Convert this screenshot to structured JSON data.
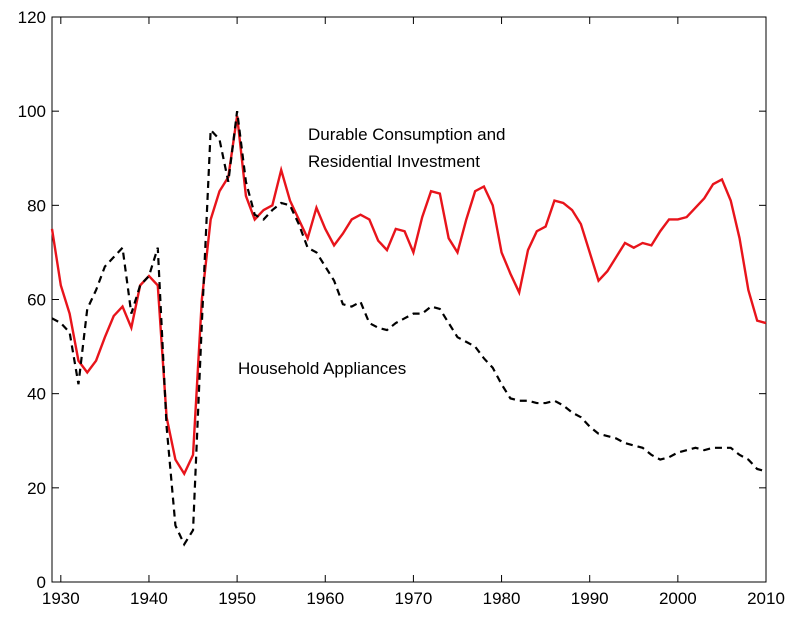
{
  "chart_data": {
    "type": "line",
    "annotations": [
      "Durable Consumption and",
      "Residential Investment",
      "Household Appliances"
    ],
    "x": [
      1929,
      1930,
      1931,
      1932,
      1933,
      1934,
      1935,
      1936,
      1937,
      1938,
      1939,
      1940,
      1941,
      1942,
      1943,
      1944,
      1945,
      1946,
      1947,
      1948,
      1949,
      1950,
      1951,
      1952,
      1953,
      1954,
      1955,
      1956,
      1957,
      1958,
      1959,
      1960,
      1961,
      1962,
      1963,
      1964,
      1965,
      1966,
      1967,
      1968,
      1969,
      1970,
      1971,
      1972,
      1973,
      1974,
      1975,
      1976,
      1977,
      1978,
      1979,
      1980,
      1981,
      1982,
      1983,
      1984,
      1985,
      1986,
      1987,
      1988,
      1989,
      1990,
      1991,
      1992,
      1993,
      1994,
      1995,
      1996,
      1997,
      1998,
      1999,
      2000,
      2001,
      2002,
      2003,
      2004,
      2005,
      2006,
      2007,
      2008,
      2009,
      2010
    ],
    "series": [
      {
        "color": "#e8141b",
        "dash": false,
        "values": [
          75,
          63,
          57,
          47,
          44.5,
          47,
          52,
          56.5,
          58.5,
          54,
          63,
          65,
          63,
          35,
          26,
          23,
          27,
          60,
          77,
          83,
          86,
          99,
          82,
          77,
          79,
          80,
          87.5,
          81,
          77,
          73,
          79.5,
          75,
          71.5,
          74,
          77,
          78,
          77,
          72.5,
          70.5,
          75,
          74.5,
          70,
          77.5,
          83,
          82.5,
          73,
          70,
          77,
          83,
          84,
          80,
          70,
          65.5,
          61.5,
          70.5,
          74.5,
          75.5,
          81,
          80.5,
          79,
          76,
          70,
          64,
          66,
          69,
          72,
          71,
          72,
          71.5,
          74.5,
          77,
          77,
          77.5,
          79.5,
          81.5,
          84.5,
          85.5,
          81,
          73,
          62,
          55.5,
          55
        ]
      },
      {
        "color": "#000000",
        "dash": true,
        "values": [
          56,
          55,
          53,
          42,
          58,
          62,
          67,
          69,
          71,
          57,
          63,
          65,
          71,
          33,
          12,
          8,
          11,
          55,
          96,
          94,
          85,
          100,
          85,
          78,
          77,
          79,
          80.5,
          80,
          76,
          71,
          70,
          67,
          64,
          59,
          58.5,
          59.5,
          55,
          54,
          53.5,
          55,
          56,
          57,
          57,
          58.5,
          58,
          55,
          52,
          51,
          50,
          47.5,
          45.5,
          42,
          39,
          38.5,
          38.5,
          38,
          38,
          38.5,
          37.5,
          36,
          35,
          33,
          31.5,
          31,
          30.5,
          29.5,
          29,
          28.5,
          27,
          26,
          26.5,
          27.5,
          28,
          28.5,
          28,
          28.5,
          28.5,
          28.5,
          27,
          26,
          24,
          23.5
        ]
      }
    ],
    "xlim": [
      1929,
      2010
    ],
    "xticks": [
      1930,
      1940,
      1950,
      1960,
      1970,
      1980,
      1990,
      2000,
      2010
    ],
    "ylim": [
      0,
      120
    ],
    "yticks": [
      0,
      20,
      40,
      60,
      80,
      100,
      120
    ],
    "grid": false
  }
}
